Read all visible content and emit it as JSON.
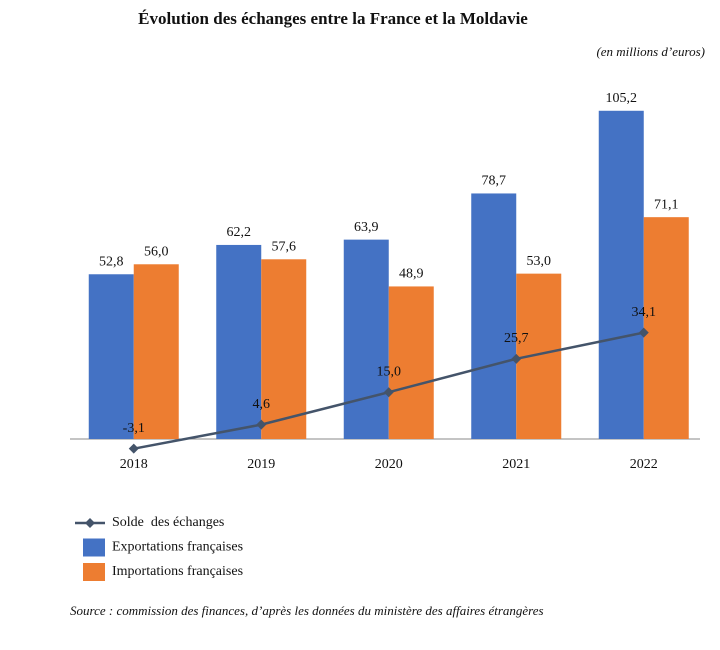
{
  "chart_data": {
    "type": "bar",
    "title": "Évolution des échanges entre la France et la Moldavie",
    "subtitle": "(en millions d’euros)",
    "source": "Source : commission des finances, d’après les données du ministère des affaires étrangères",
    "categories": [
      "2018",
      "2019",
      "2020",
      "2021",
      "2022"
    ],
    "series": [
      {
        "name": "Solde  des échanges",
        "type": "line",
        "color": "#44546a",
        "values": [
          -3.1,
          4.6,
          15.0,
          25.7,
          34.1
        ],
        "value_labels": [
          "-3,1",
          "4,6",
          "15,0",
          "25,7",
          "34,1"
        ]
      },
      {
        "name": "Exportations françaises",
        "type": "bar",
        "color": "#4472c4",
        "values": [
          52.8,
          62.2,
          63.9,
          78.7,
          105.2
        ],
        "value_labels": [
          "52,8",
          "62,2",
          "63,9",
          "78,7",
          "105,2"
        ]
      },
      {
        "name": "Importations françaises",
        "type": "bar",
        "color": "#ed7d31",
        "values": [
          56.0,
          57.6,
          48.9,
          53.0,
          71.1
        ],
        "value_labels": [
          "56,0",
          "57,6",
          "48,9",
          "53,0",
          "71,1"
        ]
      }
    ]
  }
}
